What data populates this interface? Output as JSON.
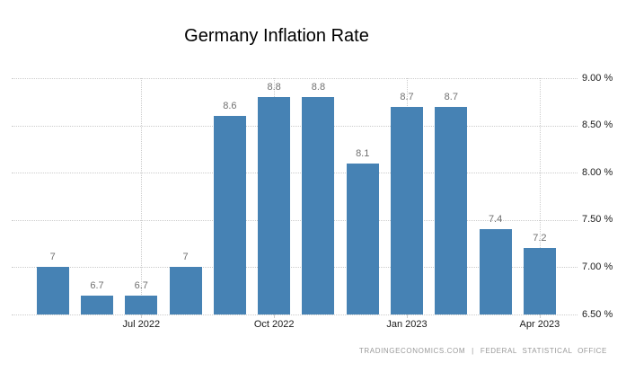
{
  "footer": {
    "provider": "TRADINGECONOMICS.COM",
    "separator": "|",
    "source": "FEDERAL STATISTICAL OFFICE"
  },
  "chart_data": {
    "type": "bar",
    "title": "Germany Inflation Rate",
    "values": [
      7,
      6.7,
      6.7,
      7,
      8.6,
      8.8,
      8.8,
      8.1,
      8.7,
      8.7,
      7.4,
      7.2
    ],
    "bar_labels": [
      "7",
      "6.7",
      "6.7",
      "7",
      "8.6",
      "8.8",
      "8.8",
      "8.1",
      "8.7",
      "8.7",
      "7.4",
      "7.2"
    ],
    "x_tick_labels": [
      "Jul 2022",
      "Oct 2022",
      "Jan 2023",
      "Apr 2023"
    ],
    "x_tick_bar_indices": [
      2,
      5,
      8,
      11
    ],
    "y_tick_labels": [
      "6.50 %",
      "7.00 %",
      "7.50 %",
      "8.00 %",
      "8.50 %",
      "9.00 %"
    ],
    "y_min": 6.5,
    "y_max": 9.0,
    "y_step": 0.5,
    "y_axis_side": "right",
    "grid_style": "dotted",
    "grid_color": "#cccccc",
    "bar_color": "#4682b4",
    "label_color": "#707070",
    "legend": "none"
  }
}
